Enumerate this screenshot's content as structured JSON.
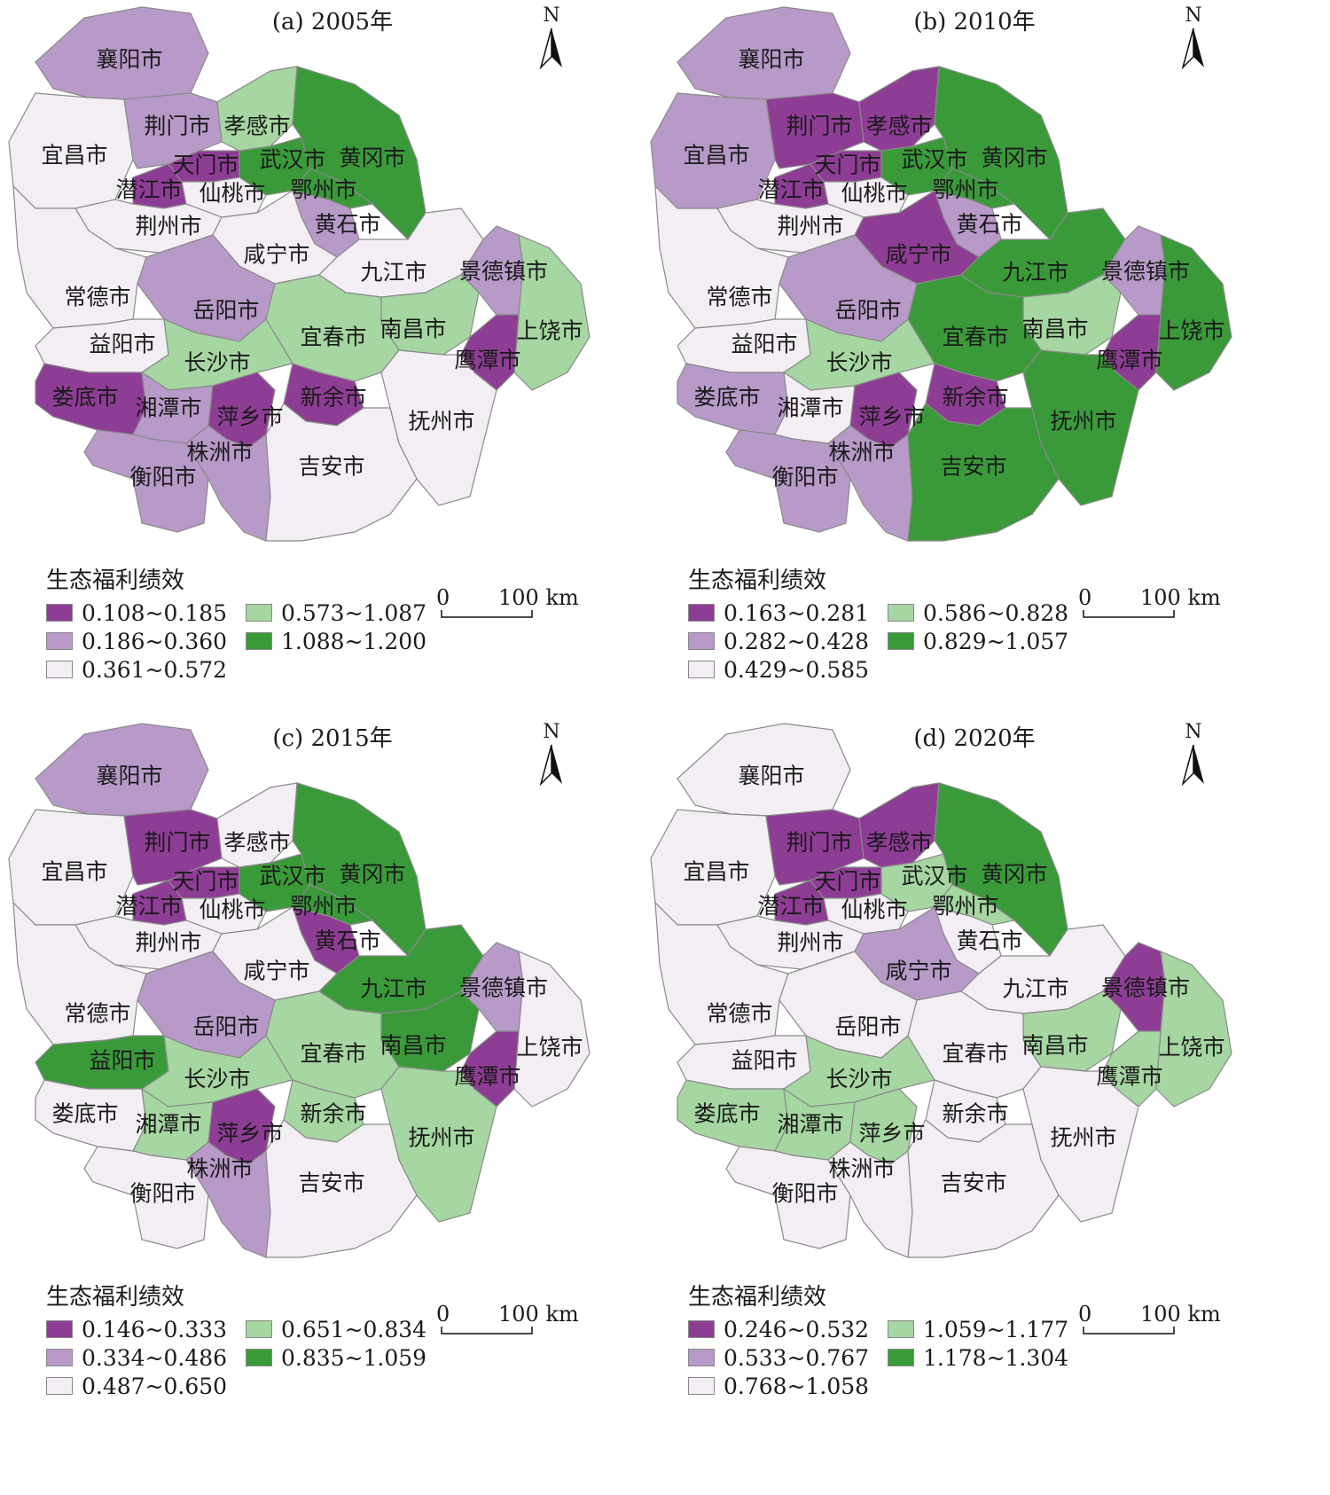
{
  "colors": {
    "c1": "#8e3d95",
    "c2": "#b89ac9",
    "c3": "#f3eef4",
    "c4": "#a6d6a2",
    "c5": "#3a9a3a",
    "border": "#8a8a8a"
  },
  "north_label": "N",
  "scale_bar": {
    "zero": "0",
    "label": "100 km"
  },
  "cities": [
    "襄阳市",
    "宜昌市",
    "荆门市",
    "孝感市",
    "天门市",
    "武汉市",
    "黄冈市",
    "潜江市",
    "仙桃市",
    "鄂州市",
    "黄石市",
    "荆州市",
    "咸宁市",
    "九江市",
    "景德镇市",
    "常德市",
    "岳阳市",
    "南昌市",
    "上饶市",
    "益阳市",
    "宜春市",
    "长沙市",
    "鹰潭市",
    "娄底市",
    "湘潭市",
    "萍乡市",
    "新余市",
    "抚州市",
    "株洲市",
    "衡阳市",
    "吉安市"
  ],
  "panels": [
    {
      "title": "(a) 2005年",
      "legend_title": "生态福利绩效",
      "classes": [
        "0.108~0.185",
        "0.186~0.360",
        "0.361~0.572",
        "0.573~1.087",
        "1.088~1.200"
      ],
      "city_class": {
        "襄阳市": 2,
        "宜昌市": 3,
        "荆门市": 2,
        "孝感市": 4,
        "天门市": 1,
        "武汉市": 5,
        "黄冈市": 5,
        "潜江市": 1,
        "仙桃市": 3,
        "鄂州市": 5,
        "黄石市": 2,
        "荆州市": 3,
        "咸宁市": 3,
        "九江市": 3,
        "景德镇市": 2,
        "常德市": 3,
        "岳阳市": 2,
        "南昌市": 4,
        "上饶市": 4,
        "益阳市": 3,
        "宜春市": 4,
        "长沙市": 4,
        "鹰潭市": 1,
        "娄底市": 1,
        "湘潭市": 2,
        "萍乡市": 1,
        "新余市": 1,
        "抚州市": 3,
        "株洲市": 2,
        "衡阳市": 2,
        "吉安市": 3
      }
    },
    {
      "title": "(b) 2010年",
      "legend_title": "生态福利绩效",
      "classes": [
        "0.163~0.281",
        "0.282~0.428",
        "0.429~0.585",
        "0.586~0.828",
        "0.829~1.057"
      ],
      "city_class": {
        "襄阳市": 2,
        "宜昌市": 2,
        "荆门市": 1,
        "孝感市": 1,
        "天门市": 1,
        "武汉市": 5,
        "黄冈市": 5,
        "潜江市": 1,
        "仙桃市": 3,
        "鄂州市": 5,
        "黄石市": 2,
        "荆州市": 3,
        "咸宁市": 1,
        "九江市": 5,
        "景德镇市": 2,
        "常德市": 3,
        "岳阳市": 2,
        "南昌市": 4,
        "上饶市": 5,
        "益阳市": 3,
        "宜春市": 5,
        "长沙市": 4,
        "鹰潭市": 1,
        "娄底市": 2,
        "湘潭市": 3,
        "萍乡市": 1,
        "新余市": 1,
        "抚州市": 5,
        "株洲市": 2,
        "衡阳市": 2,
        "吉安市": 5
      }
    },
    {
      "title": "(c) 2015年",
      "legend_title": "生态福利绩效",
      "classes": [
        "0.146~0.333",
        "0.334~0.486",
        "0.487~0.650",
        "0.651~0.834",
        "0.835~1.059"
      ],
      "city_class": {
        "襄阳市": 2,
        "宜昌市": 3,
        "荆门市": 1,
        "孝感市": 3,
        "天门市": 1,
        "武汉市": 5,
        "黄冈市": 5,
        "潜江市": 1,
        "仙桃市": 3,
        "鄂州市": 5,
        "黄石市": 1,
        "荆州市": 3,
        "咸宁市": 3,
        "九江市": 5,
        "景德镇市": 2,
        "常德市": 3,
        "岳阳市": 2,
        "南昌市": 5,
        "上饶市": 3,
        "益阳市": 5,
        "宜春市": 4,
        "长沙市": 4,
        "鹰潭市": 1,
        "娄底市": 3,
        "湘潭市": 4,
        "萍乡市": 1,
        "新余市": 4,
        "抚州市": 4,
        "株洲市": 2,
        "衡阳市": 3,
        "吉安市": 3
      }
    },
    {
      "title": "(d) 2020年",
      "legend_title": "生态福利绩效",
      "classes": [
        "0.246~0.532",
        "0.533~0.767",
        "0.768~1.058",
        "1.059~1.177",
        "1.178~1.304"
      ],
      "city_class": {
        "襄阳市": 3,
        "宜昌市": 3,
        "荆门市": 1,
        "孝感市": 1,
        "天门市": 1,
        "武汉市": 4,
        "黄冈市": 5,
        "潜江市": 1,
        "仙桃市": 3,
        "鄂州市": 4,
        "黄石市": 3,
        "荆州市": 3,
        "咸宁市": 2,
        "九江市": 3,
        "景德镇市": 1,
        "常德市": 3,
        "岳阳市": 3,
        "南昌市": 4,
        "上饶市": 4,
        "益阳市": 3,
        "宜春市": 3,
        "长沙市": 4,
        "鹰潭市": 4,
        "娄底市": 4,
        "湘潭市": 4,
        "萍乡市": 4,
        "新余市": 3,
        "抚州市": 3,
        "株洲市": 3,
        "衡阳市": 3,
        "吉安市": 3
      }
    }
  ]
}
